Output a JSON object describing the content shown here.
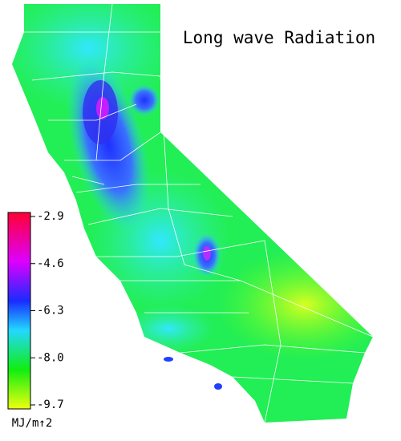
{
  "title": "Long wave Radiation",
  "colorbar": {
    "range": [
      -9.7,
      -2.9
    ],
    "ticks": [
      -2.9,
      -4.6,
      -6.3,
      {
        "value": -8,
        "label": "-8.0"
      },
      -9.7
    ],
    "unit": "MJ/m↑2"
  }
}
